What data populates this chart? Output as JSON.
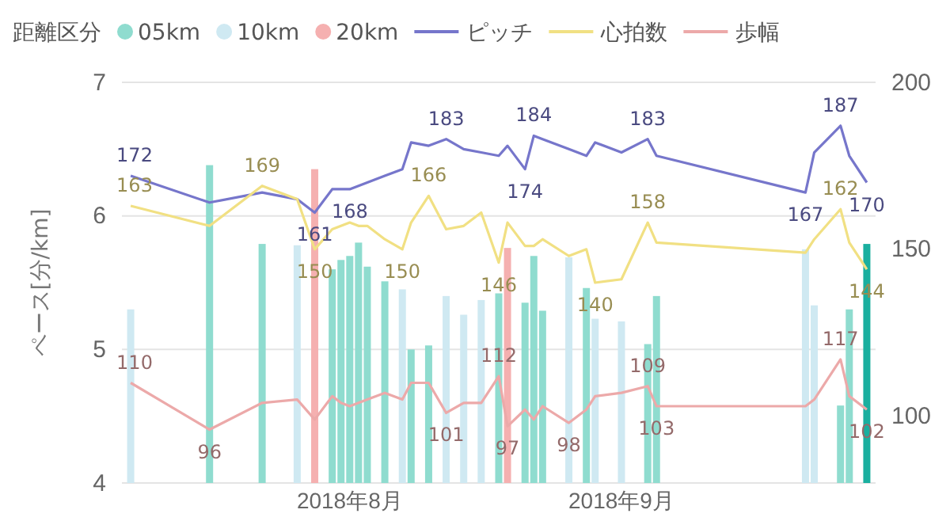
{
  "chart_data": {
    "type": "bar",
    "legend_title": "距離区分",
    "ylabel": "ペース[分/km]",
    "legend": "top",
    "grid": "y",
    "x": [
      "2018-07-07",
      "2018-07-16",
      "2018-07-22",
      "2018-07-26",
      "2018-07-28",
      "2018-07-30",
      "2018-07-31",
      "2018-08-01",
      "2018-08-02",
      "2018-08-03",
      "2018-08-05",
      "2018-08-07",
      "2018-08-08",
      "2018-08-10",
      "2018-08-12",
      "2018-08-14",
      "2018-08-16",
      "2018-08-18",
      "2018-08-19",
      "2018-08-21",
      "2018-08-22",
      "2018-08-23",
      "2018-08-26",
      "2018-08-28",
      "2018-08-29",
      "2018-09-01",
      "2018-09-04",
      "2018-09-05",
      "2018-09-22",
      "2018-09-23",
      "2018-09-26",
      "2018-09-27",
      "2018-09-29"
    ],
    "xlim": [
      "2018-07-06",
      "2018-09-30"
    ],
    "xticks": [
      {
        "value": "2018-08-01",
        "label": "2018年8月"
      },
      {
        "value": "2018-09-01",
        "label": "2018年9月"
      }
    ],
    "ylim": [
      4,
      7
    ],
    "yticks": [
      4,
      5,
      6,
      7
    ],
    "y2lim": [
      80,
      200
    ],
    "y2ticks": [
      100,
      150,
      200
    ],
    "series": [
      {
        "name": "05km",
        "color": "#8fdccf",
        "x": [
          "2018-07-16",
          "2018-07-22",
          "2018-07-30",
          "2018-07-31",
          "2018-08-01",
          "2018-08-02",
          "2018-08-03",
          "2018-08-05",
          "2018-08-08",
          "2018-08-10",
          "2018-08-18",
          "2018-08-21",
          "2018-08-22",
          "2018-08-23",
          "2018-08-28",
          "2018-09-04",
          "2018-09-05",
          "2018-09-26",
          "2018-09-27",
          "2018-09-29"
        ],
        "values": [
          6.38,
          5.79,
          5.6,
          5.67,
          5.7,
          5.8,
          5.62,
          5.51,
          5.0,
          5.03,
          5.42,
          5.35,
          5.7,
          5.29,
          5.46,
          5.04,
          5.4,
          4.58,
          5.3,
          5.79
        ],
        "colors": [
          "#8fdccf",
          "#8fdccf",
          "#8fdccf",
          "#8fdccf",
          "#8fdccf",
          "#8fdccf",
          "#8fdccf",
          "#8fdccf",
          "#8fdccf",
          "#8fdccf",
          "#8fdccf",
          "#8fdccf",
          "#8fdccf",
          "#8fdccf",
          "#8fdccf",
          "#8fdccf",
          "#8fdccf",
          "#8fdccf",
          "#8fdccf",
          "#1aaf9f"
        ]
      },
      {
        "name": "10km",
        "color": "#cfe9f2",
        "x": [
          "2018-07-07",
          "2018-07-26",
          "2018-08-07",
          "2018-08-12",
          "2018-08-14",
          "2018-08-16",
          "2018-08-26",
          "2018-08-29",
          "2018-09-01",
          "2018-09-22",
          "2018-09-23"
        ],
        "values": [
          5.3,
          5.78,
          5.45,
          5.4,
          5.26,
          5.37,
          5.69,
          5.23,
          5.21,
          5.75,
          5.33
        ]
      },
      {
        "name": "20km",
        "color": "#f5b0b0",
        "x": [
          "2018-07-28",
          "2018-08-19"
        ],
        "values": [
          6.35,
          5.76
        ]
      },
      {
        "name": "ピッチ",
        "type": "line",
        "axis": "y2",
        "color": "#7676cb",
        "values": [
          172,
          164,
          167,
          165,
          161,
          168,
          168,
          168,
          169,
          170,
          172,
          174,
          182,
          181,
          183,
          180,
          179,
          178,
          181,
          174,
          184,
          183,
          180,
          178,
          182,
          179,
          183,
          178,
          167,
          179,
          187,
          178,
          170
        ],
        "value_labels": [
          "172",
          null,
          null,
          null,
          "161",
          null,
          null,
          "168",
          null,
          null,
          null,
          null,
          null,
          null,
          "183",
          null,
          null,
          null,
          null,
          "174",
          "184",
          null,
          null,
          null,
          null,
          null,
          "183",
          null,
          "167",
          null,
          "187",
          null,
          "170"
        ]
      },
      {
        "name": "心拍数",
        "type": "line",
        "axis": "y2",
        "color": "#f1e083",
        "values": [
          163,
          157,
          169,
          165,
          150,
          156,
          157,
          158,
          157,
          157,
          153,
          150,
          158,
          166,
          156,
          157,
          161,
          146,
          158,
          151,
          151,
          153,
          148,
          150,
          140,
          141,
          158,
          152,
          149,
          153,
          162,
          152,
          144
        ],
        "value_labels": [
          "163",
          null,
          "169",
          null,
          "150",
          null,
          null,
          null,
          null,
          null,
          null,
          "150",
          null,
          "166",
          null,
          null,
          null,
          "146",
          null,
          null,
          null,
          null,
          null,
          null,
          "140",
          null,
          "158",
          null,
          null,
          null,
          "162",
          null,
          "144"
        ]
      },
      {
        "name": "歩幅",
        "type": "line",
        "axis": "y2",
        "color": "#eca9a9",
        "values": [
          110,
          96,
          104,
          105,
          99,
          106,
          104,
          103,
          104,
          105,
          107,
          105,
          110,
          110,
          101,
          104,
          104,
          112,
          97,
          102,
          99,
          103,
          98,
          102,
          106,
          107,
          109,
          103,
          103,
          105,
          117,
          106,
          102
        ],
        "value_labels": [
          "110",
          "96",
          null,
          null,
          null,
          null,
          null,
          null,
          null,
          null,
          null,
          null,
          null,
          null,
          "101",
          null,
          null,
          "112",
          "97",
          null,
          null,
          null,
          "98",
          null,
          null,
          null,
          "109",
          "103",
          null,
          null,
          "117",
          null,
          "102"
        ]
      }
    ]
  }
}
